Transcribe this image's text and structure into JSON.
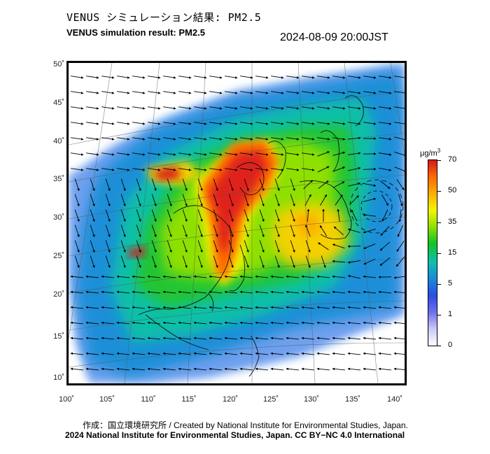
{
  "header": {
    "title_jp": "VENUS シミュレーション結果: PM2.5",
    "title_en": "VENUS simulation result: PM2.5",
    "timestamp": "2024-08-09 20:00JST"
  },
  "map": {
    "region": "East Asia",
    "projection": "conic",
    "lon_range": [
      100,
      140
    ],
    "lat_range": [
      10,
      50
    ],
    "lat_labels": [
      "50˚",
      "45˚",
      "40˚",
      "35˚",
      "30˚",
      "25˚",
      "20˚",
      "15˚",
      "10˚"
    ],
    "lon_labels": [
      "100˚",
      "105˚",
      "110˚",
      "115˚",
      "120˚",
      "125˚",
      "130˚",
      "135˚",
      "140˚"
    ],
    "overlay": "wind vectors (black arrows)",
    "field": "PM2.5 concentration"
  },
  "colorbar": {
    "unit_prefix": "μg/m",
    "unit_sup": "3",
    "labels": [
      "70",
      "50",
      "35",
      "15",
      "5",
      "1",
      "0"
    ],
    "colors": [
      "#d7191c",
      "#fd6a00",
      "#fdae00",
      "#f5f500",
      "#8ee000",
      "#11c422",
      "#0fbfb0",
      "#1a8ad8",
      "#2b4de0",
      "#6f6ff0",
      "#c8c8f8",
      "#ffffff"
    ]
  },
  "footer": {
    "credit_line_1": "作成：国立環境研究所 / Created by National Institute for Environmental Studies, Japan.",
    "credit_line_2": "2024 National Institute for Environmental Studies, Japan. CC BY−NC 4.0 International"
  }
}
